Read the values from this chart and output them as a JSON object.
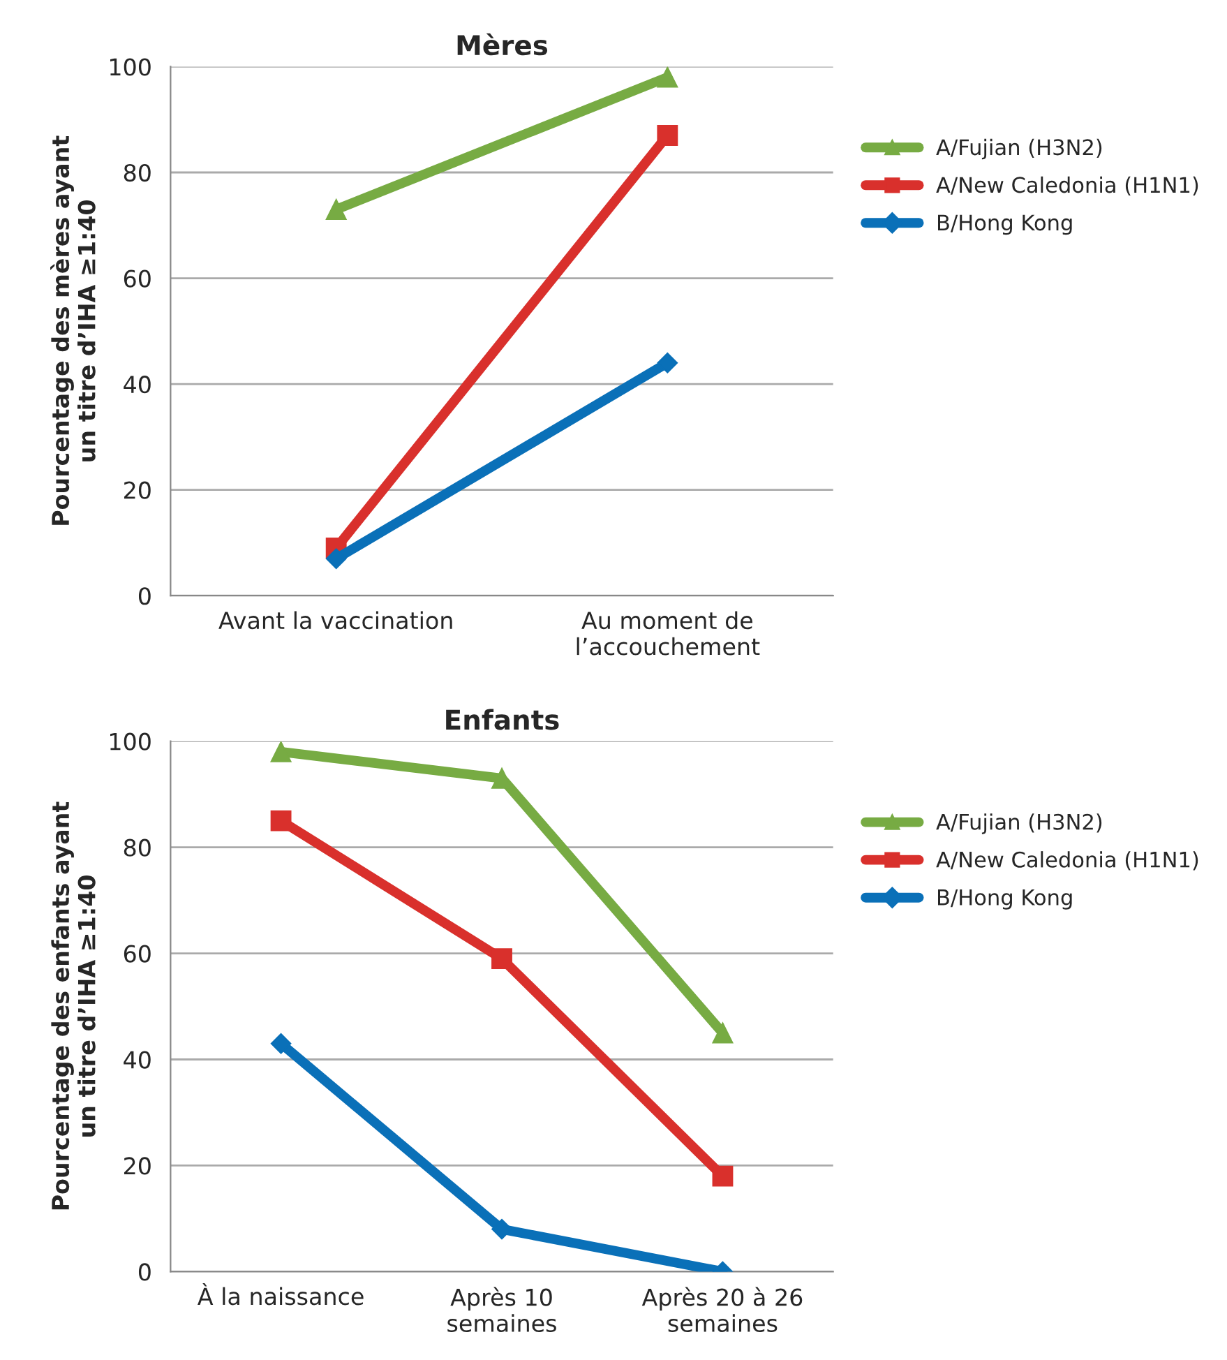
{
  "chart_data": [
    {
      "type": "line",
      "title": "Mères",
      "ylabel": "Pourcentage des mères ayant\nun titre d’IHA ≥1:40",
      "categories": [
        "Avant la vaccination",
        "Au moment de\nl’accouchement"
      ],
      "ylim": [
        0,
        100
      ],
      "yticks": [
        0,
        20,
        40,
        60,
        80,
        100
      ],
      "grid": "y",
      "legend": "right",
      "line_style": "solid",
      "series": [
        {
          "name": "A/Fujian (H3N2)",
          "color": "#77ab43",
          "marker": "triangle",
          "values": [
            73,
            98
          ]
        },
        {
          "name": "A/New Caledonia (H1N1)",
          "color": "#d9302c",
          "marker": "square",
          "values": [
            9,
            87
          ]
        },
        {
          "name": "B/Hong Kong",
          "color": "#0a70b8",
          "marker": "diamond",
          "values": [
            7,
            44
          ]
        }
      ]
    },
    {
      "type": "line",
      "title": "Enfants",
      "ylabel": "Pourcentage des enfants ayant\nun titre d’IHA ≥1:40",
      "categories": [
        "À la naissance",
        "Après 10\nsemaines",
        "Après 20 à 26\nsemaines"
      ],
      "ylim": [
        0,
        100
      ],
      "yticks": [
        0,
        20,
        40,
        60,
        80,
        100
      ],
      "grid": "y",
      "legend": "right",
      "line_style": "solid",
      "series": [
        {
          "name": "A/Fujian (H3N2)",
          "color": "#77ab43",
          "marker": "triangle",
          "values": [
            98,
            93,
            45
          ]
        },
        {
          "name": "A/New Caledonia (H1N1)",
          "color": "#d9302c",
          "marker": "square",
          "values": [
            85,
            59,
            18
          ]
        },
        {
          "name": "B/Hong Kong",
          "color": "#0a70b8",
          "marker": "diamond",
          "values": [
            43,
            8,
            0
          ]
        }
      ]
    }
  ]
}
